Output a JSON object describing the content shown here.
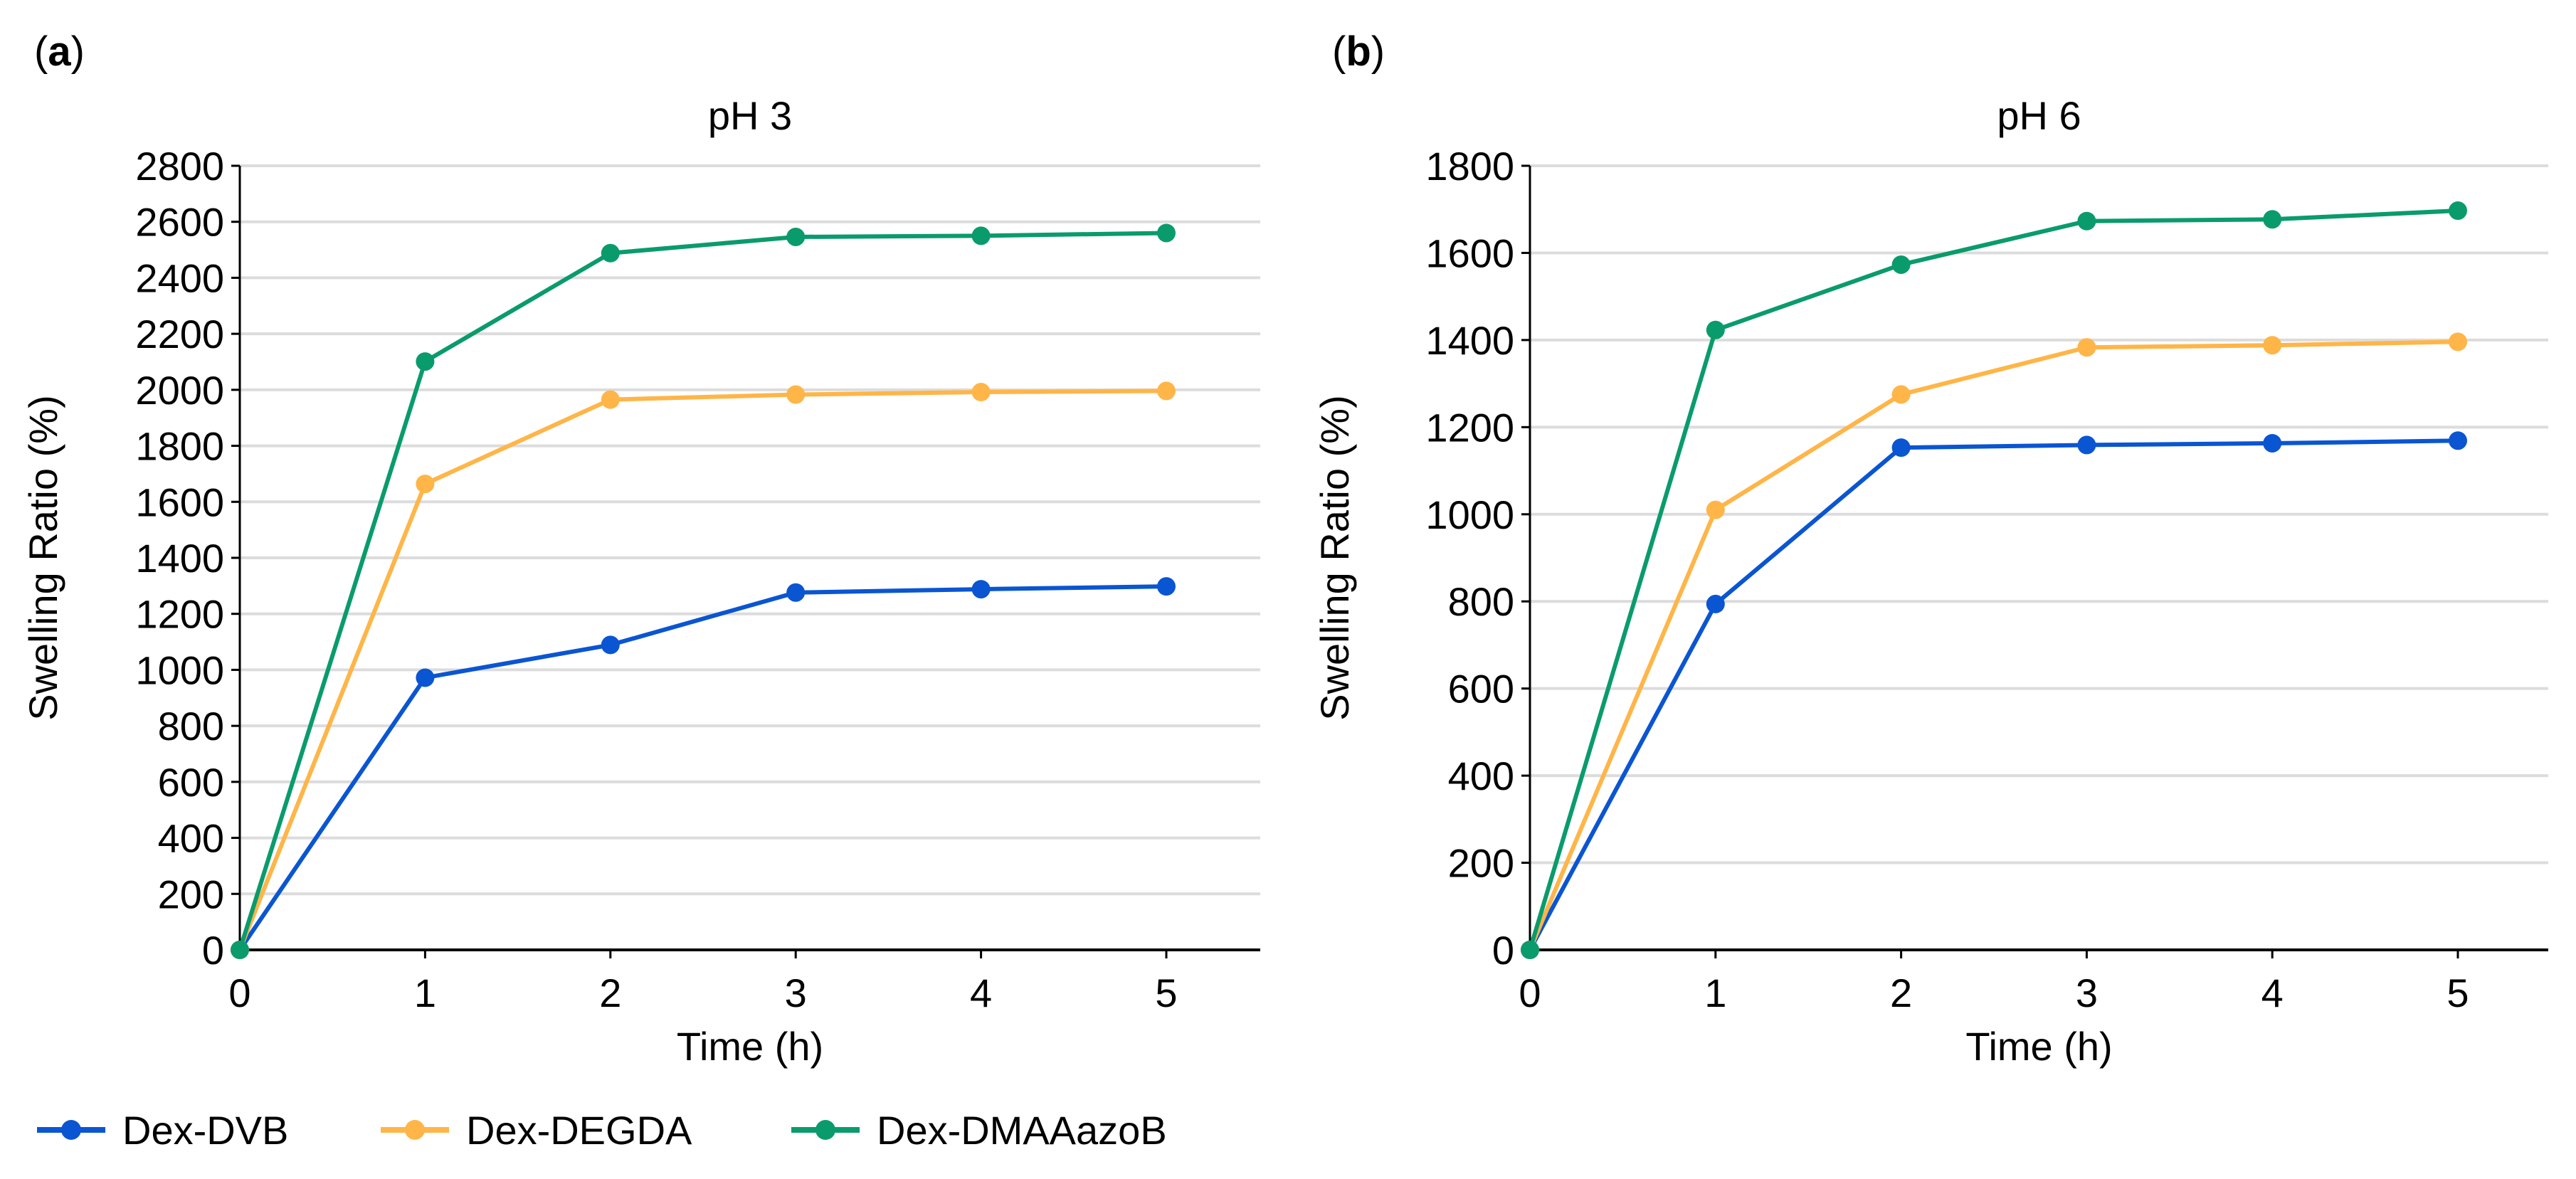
{
  "chart_data": [
    {
      "type": "line",
      "panel_label": "a",
      "title": "pH 3",
      "xlabel": "Time (h)",
      "ylabel": "Swelling Ratio (%)",
      "x": [
        0,
        1,
        2,
        3,
        4,
        5
      ],
      "xticks": [
        "0",
        "1",
        "2",
        "3",
        "4",
        "5"
      ],
      "xlim": [
        0,
        5.5
      ],
      "ylim": [
        0,
        2800
      ],
      "yticks": [
        0,
        200,
        400,
        600,
        800,
        1000,
        1200,
        1400,
        1600,
        1800,
        2000,
        2200,
        2400,
        2600,
        2800
      ],
      "grid": true,
      "series": [
        {
          "name": "Dex-DVB",
          "color": "#0a55d2",
          "values": [
            0,
            972,
            1089,
            1276,
            1288,
            1298
          ]
        },
        {
          "name": "Dex-DEGDA",
          "color": "#ffb547",
          "values": [
            0,
            1664,
            1965,
            1983,
            1992,
            1996
          ]
        },
        {
          "name": "Dex-DMAAazoB",
          "color": "#0a9b6c",
          "values": [
            0,
            2101,
            2488,
            2546,
            2550,
            2560
          ]
        }
      ]
    },
    {
      "type": "line",
      "panel_label": "b",
      "title": "pH 6",
      "xlabel": "Time (h)",
      "ylabel": "Swelling Ratio (%)",
      "x": [
        0,
        1,
        2,
        3,
        4,
        5
      ],
      "xticks": [
        "0",
        "1",
        "2",
        "3",
        "4",
        "5"
      ],
      "xlim": [
        0,
        5.5
      ],
      "ylim": [
        0,
        1800
      ],
      "yticks": [
        0,
        200,
        400,
        600,
        800,
        1000,
        1200,
        1400,
        1600,
        1800
      ],
      "grid": true,
      "series": [
        {
          "name": "Dex-DVB",
          "color": "#0a55d2",
          "values": [
            0,
            794,
            1153,
            1159,
            1163,
            1169
          ]
        },
        {
          "name": "Dex-DEGDA",
          "color": "#ffb547",
          "values": [
            0,
            1010,
            1275,
            1383,
            1388,
            1396
          ]
        },
        {
          "name": "Dex-DMAAazoB",
          "color": "#0a9b6c",
          "values": [
            0,
            1423,
            1573,
            1673,
            1677,
            1697
          ]
        }
      ]
    }
  ],
  "legend": {
    "placement": "bottom-left",
    "items": [
      {
        "label": "Dex-DVB",
        "color": "#0a55d2"
      },
      {
        "label": "Dex-DEGDA",
        "color": "#ffb547"
      },
      {
        "label": "Dex-DMAAazoB",
        "color": "#0a9b6c"
      }
    ]
  }
}
